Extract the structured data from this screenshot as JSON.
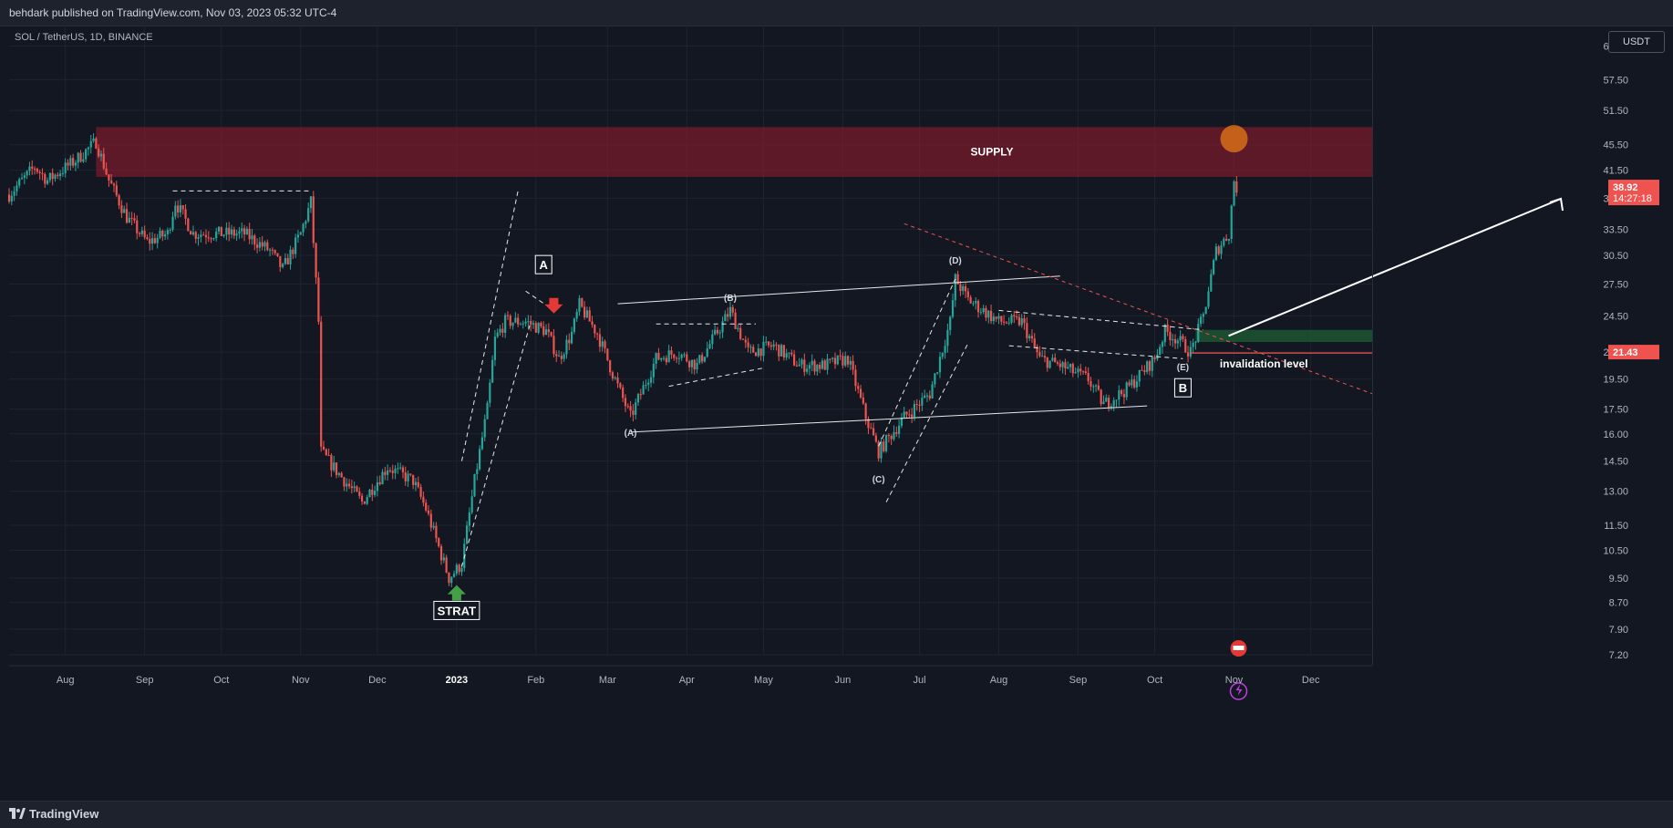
{
  "header": {
    "published_by": "behdark published on TradingView.com, Nov 03, 2023 05:32 UTC-4"
  },
  "symbol_info": "SOL / TetherUS, 1D, BINANCE",
  "currency": "USDT",
  "footer": {
    "brand": "TradingView"
  },
  "colors": {
    "up": "#26a69a",
    "down": "#ef5350",
    "supply": "#8b1c2c",
    "demand": "#1e5631",
    "background": "#131722"
  },
  "chart_data": {
    "type": "candlestick",
    "y_scale": "log",
    "ylim": [
      7.2,
      70
    ],
    "y_ticks": [
      65.0,
      57.5,
      51.5,
      45.5,
      41.5,
      37.5,
      33.5,
      30.5,
      27.5,
      24.5,
      21.5,
      19.5,
      17.5,
      16.0,
      14.5,
      13.0,
      11.5,
      10.5,
      9.5,
      8.7,
      7.9,
      7.2
    ],
    "y_tick_labels": [
      "65.00",
      "57.50",
      "51.50",
      "45.50",
      "41.50",
      "37.50",
      "33.50",
      "30.50",
      "27.50",
      "24.50",
      "21.50",
      "19.50",
      "17.50",
      "16.00",
      "14.50",
      "13.00",
      "11.50",
      "10.50",
      "9.50",
      "8.70",
      "7.90",
      "7.20"
    ],
    "x_range": [
      "2022-07-10",
      "2023-12-25"
    ],
    "x_ticks": [
      {
        "date": "2022-08-01",
        "label": "Aug"
      },
      {
        "date": "2022-09-01",
        "label": "Sep"
      },
      {
        "date": "2022-10-01",
        "label": "Oct"
      },
      {
        "date": "2022-11-01",
        "label": "Nov"
      },
      {
        "date": "2022-12-01",
        "label": "Dec"
      },
      {
        "date": "2023-01-01",
        "label": "2023"
      },
      {
        "date": "2023-02-01",
        "label": "Feb"
      },
      {
        "date": "2023-03-01",
        "label": "Mar"
      },
      {
        "date": "2023-04-01",
        "label": "Apr"
      },
      {
        "date": "2023-05-01",
        "label": "May"
      },
      {
        "date": "2023-06-01",
        "label": "Jun"
      },
      {
        "date": "2023-07-01",
        "label": "Jul"
      },
      {
        "date": "2023-08-01",
        "label": "Aug"
      },
      {
        "date": "2023-09-01",
        "label": "Sep"
      },
      {
        "date": "2023-10-01",
        "label": "Oct"
      },
      {
        "date": "2023-11-01",
        "label": "Nov"
      },
      {
        "date": "2023-12-01",
        "label": "Dec"
      }
    ],
    "price_path": [
      [
        "2022-07-10",
        38
      ],
      [
        "2022-07-20",
        42
      ],
      [
        "2022-07-25",
        40
      ],
      [
        "2022-08-05",
        43
      ],
      [
        "2022-08-13",
        46
      ],
      [
        "2022-08-18",
        40
      ],
      [
        "2022-08-25",
        35
      ],
      [
        "2022-09-02",
        32
      ],
      [
        "2022-09-10",
        33
      ],
      [
        "2022-09-13",
        37
      ],
      [
        "2022-09-20",
        33
      ],
      [
        "2022-09-30",
        33
      ],
      [
        "2022-10-10",
        33
      ],
      [
        "2022-10-20",
        31
      ],
      [
        "2022-10-25",
        29
      ],
      [
        "2022-11-01",
        33
      ],
      [
        "2022-11-05",
        37
      ],
      [
        "2022-11-08",
        24
      ],
      [
        "2022-11-09",
        15
      ],
      [
        "2022-11-15",
        14
      ],
      [
        "2022-11-25",
        12.5
      ],
      [
        "2022-12-05",
        14.2
      ],
      [
        "2022-12-15",
        13.5
      ],
      [
        "2022-12-20",
        12.2
      ],
      [
        "2022-12-29",
        9.5
      ],
      [
        "2023-01-03",
        10
      ],
      [
        "2023-01-08",
        13.5
      ],
      [
        "2023-01-13",
        17.5
      ],
      [
        "2023-01-16",
        22.5
      ],
      [
        "2023-01-20",
        24
      ],
      [
        "2023-01-28",
        24
      ],
      [
        "2023-02-05",
        23.2
      ],
      [
        "2023-02-10",
        21
      ],
      [
        "2023-02-15",
        23
      ],
      [
        "2023-02-18",
        25.5
      ],
      [
        "2023-02-25",
        23
      ],
      [
        "2023-03-05",
        19
      ],
      [
        "2023-03-10",
        17
      ],
      [
        "2023-03-20",
        21
      ],
      [
        "2023-03-28",
        21.5
      ],
      [
        "2023-04-05",
        20.5
      ],
      [
        "2023-04-14",
        23.5
      ],
      [
        "2023-04-18",
        25
      ],
      [
        "2023-04-25",
        21.5
      ],
      [
        "2023-05-05",
        22
      ],
      [
        "2023-05-15",
        20.5
      ],
      [
        "2023-05-25",
        20.5
      ],
      [
        "2023-06-03",
        21
      ],
      [
        "2023-06-10",
        17
      ],
      [
        "2023-06-15",
        15
      ],
      [
        "2023-06-25",
        17
      ],
      [
        "2023-07-05",
        18.5
      ],
      [
        "2023-07-13",
        24
      ],
      [
        "2023-07-15",
        28
      ],
      [
        "2023-07-20",
        26
      ],
      [
        "2023-08-01",
        24
      ],
      [
        "2023-08-10",
        24
      ],
      [
        "2023-08-17",
        21
      ],
      [
        "2023-08-25",
        20.5
      ],
      [
        "2023-09-05",
        19.5
      ],
      [
        "2023-09-11",
        17.8
      ],
      [
        "2023-09-20",
        18.8
      ],
      [
        "2023-10-01",
        21
      ],
      [
        "2023-10-05",
        23.2
      ],
      [
        "2023-10-10",
        22.5
      ],
      [
        "2023-10-15",
        21.5
      ],
      [
        "2023-10-20",
        24.5
      ],
      [
        "2023-10-25",
        31
      ],
      [
        "2023-10-30",
        33
      ],
      [
        "2023-11-01",
        40
      ],
      [
        "2023-11-02",
        38.92
      ]
    ],
    "zones": [
      {
        "name": "supply",
        "label": "SUPPLY",
        "from": "2022-08-13",
        "to": "2023-12-25",
        "y_low": 40.5,
        "y_high": 48.5
      },
      {
        "name": "demand",
        "label": "",
        "from": "2023-10-17",
        "to": "2023-12-25",
        "y_low": 22.3,
        "y_high": 23.3
      }
    ],
    "price_badges": [
      {
        "value": "38.92",
        "sub": "14:27:18",
        "y": 38.92,
        "color": "#ef5350"
      },
      {
        "value": "21.43",
        "y": 21.43,
        "color": "#ef5350"
      }
    ],
    "horizontal_line": {
      "label": "invalidation level",
      "y": 21.43,
      "from": "2023-10-15"
    },
    "wave_labels": [
      {
        "text": "(A)",
        "date": "2023-03-10",
        "y": 16.1
      },
      {
        "text": "(B)",
        "date": "2023-04-18",
        "y": 26.2
      },
      {
        "text": "(C)",
        "date": "2023-06-15",
        "y": 13.6
      },
      {
        "text": "(D)",
        "date": "2023-07-15",
        "y": 30.0
      },
      {
        "text": "(E)",
        "date": "2023-10-12",
        "y": 20.4
      }
    ],
    "boxed_labels": [
      {
        "text": "A",
        "date": "2023-02-04",
        "y": 29.5
      },
      {
        "text": "B",
        "date": "2023-10-12",
        "y": 18.9
      },
      {
        "text": "STRAT",
        "date": "2023-01-01",
        "y": 8.45
      }
    ]
  }
}
